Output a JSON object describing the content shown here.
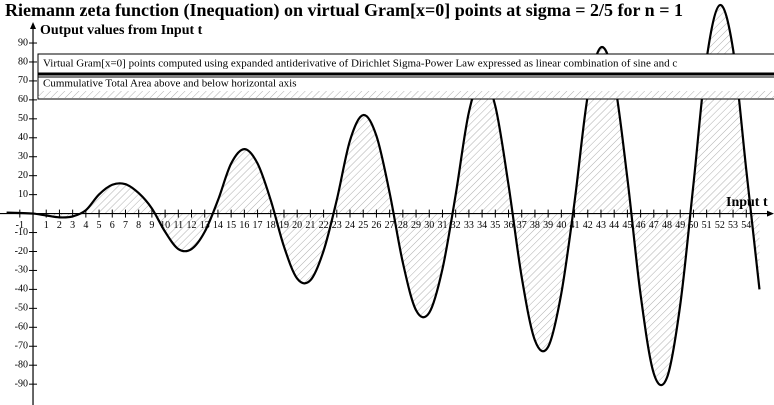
{
  "chart_data": {
    "type": "line",
    "title": "Riemann zeta function (Inequation) on virtual Gram[x=0] points at sigma = 2/5 for n = 1",
    "y_label": "Output values from Input t",
    "x_label": "Input t",
    "x": [
      -2,
      -1,
      0,
      1,
      2,
      3,
      4,
      5,
      6,
      7,
      8,
      9,
      10,
      11,
      12,
      13,
      14,
      15,
      16,
      17,
      18,
      19,
      20,
      21,
      22,
      23,
      24,
      25,
      26,
      27,
      28,
      29,
      30,
      31,
      32,
      33,
      34,
      35,
      36,
      37,
      38,
      39,
      40,
      41,
      42,
      43,
      44,
      45,
      46,
      47,
      48,
      49,
      50,
      51,
      52,
      53,
      54,
      55
    ],
    "series": [
      {
        "name": "Virtual Gram[x=0] points computed using expanded antiderivative of Dirichlet Sigma-Power Law expressed as linear combination of sine and c",
        "color": "#000000",
        "values": [
          0.5,
          0.3,
          0,
          -1,
          -2,
          -1.5,
          1.8,
          10.1,
          15.2,
          15.5,
          10.8,
          2.7,
          -9.6,
          -18.7,
          -18.7,
          -9.6,
          7,
          26.4,
          34,
          26.4,
          7,
          -17.4,
          -34.3,
          -35.2,
          -19.6,
          7.3,
          38.6,
          52,
          41,
          10.9,
          -25.9,
          -51,
          -52.3,
          -29.2,
          10,
          53.5,
          72,
          56.7,
          15.1,
          -33.6,
          -66.9,
          -70.3,
          -42,
          6.2,
          62.2,
          87.7,
          70.4,
          18.5,
          -42.8,
          -84.4,
          -86.5,
          -48.2,
          15.4,
          81.7,
          110,
          86.7,
          23.1,
          -40
        ]
      }
    ],
    "area_name": "Cummulative Total Area above and below horizontal axis",
    "xlim": [
      -2.5,
      56.1
    ],
    "ylim": [
      -101,
      112.7
    ],
    "xticks": [
      -1,
      1,
      2,
      3,
      4,
      5,
      6,
      7,
      8,
      9,
      10,
      11,
      12,
      13,
      14,
      15,
      16,
      17,
      18,
      19,
      20,
      21,
      22,
      23,
      24,
      25,
      26,
      27,
      28,
      29,
      30,
      31,
      32,
      33,
      34,
      35,
      36,
      37,
      38,
      39,
      40,
      41,
      42,
      43,
      44,
      45,
      46,
      47,
      48,
      49,
      50,
      51,
      52,
      53,
      54
    ],
    "yticks": [
      -90,
      -80,
      -70,
      -60,
      -50,
      -40,
      -30,
      -20,
      -10,
      10,
      20,
      30,
      40,
      50,
      60,
      70,
      80,
      90
    ]
  }
}
